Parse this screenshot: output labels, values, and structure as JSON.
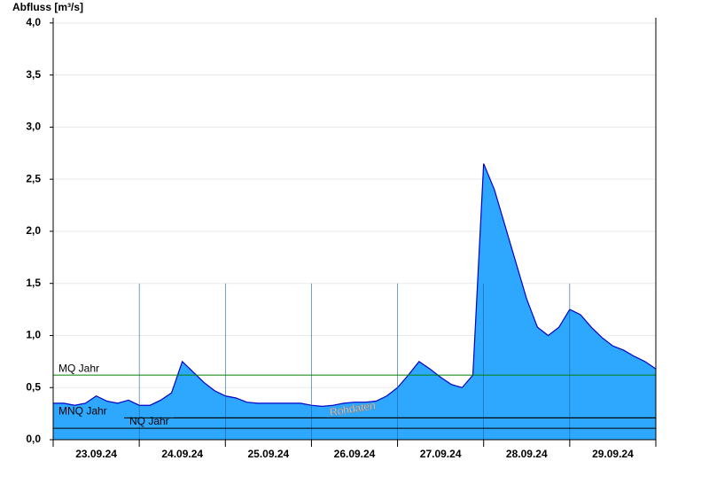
{
  "chart_data": {
    "type": "area",
    "y_label": "Abfluss [m³/s]",
    "watermark": "Rohdaten",
    "x": [
      0,
      0.125,
      0.25,
      0.375,
      0.5,
      0.625,
      0.75,
      0.875,
      1,
      1.125,
      1.25,
      1.375,
      1.5,
      1.625,
      1.75,
      1.875,
      2,
      2.125,
      2.25,
      2.375,
      2.5,
      2.625,
      2.75,
      2.875,
      3,
      3.125,
      3.25,
      3.375,
      3.5,
      3.625,
      3.75,
      3.875,
      4,
      4.125,
      4.25,
      4.375,
      4.5,
      4.625,
      4.75,
      4.875,
      5,
      5.125,
      5.25,
      5.375,
      5.5,
      5.625,
      5.75,
      5.875,
      6,
      6.125,
      6.25,
      6.375,
      6.5,
      6.625,
      6.75,
      6.875,
      7
    ],
    "series": [
      {
        "name": "Abfluss",
        "color": "#2ea8ff",
        "line_color": "#0000c8",
        "values": [
          0.35,
          0.35,
          0.33,
          0.35,
          0.42,
          0.37,
          0.35,
          0.38,
          0.33,
          0.33,
          0.38,
          0.45,
          0.75,
          0.65,
          0.55,
          0.47,
          0.42,
          0.4,
          0.36,
          0.35,
          0.35,
          0.35,
          0.35,
          0.35,
          0.33,
          0.32,
          0.33,
          0.35,
          0.36,
          0.36,
          0.37,
          0.42,
          0.5,
          0.62,
          0.75,
          0.68,
          0.6,
          0.53,
          0.5,
          0.62,
          2.65,
          2.4,
          2.05,
          1.7,
          1.35,
          1.08,
          1.0,
          1.08,
          1.25,
          1.2,
          1.08,
          0.98,
          0.9,
          0.86,
          0.8,
          0.75,
          0.68
        ]
      }
    ],
    "reference_lines": [
      {
        "name": "MQ Jahr",
        "value": 0.62,
        "color": "#008000"
      },
      {
        "name": "MNQ Jahr",
        "value": 0.21,
        "color": "#000000"
      },
      {
        "name": "NQ Jahr",
        "value": 0.11,
        "color": "#000000"
      }
    ],
    "xlim": [
      0,
      7
    ],
    "xticks": [
      {
        "value": 0.5,
        "label": "23.09.24"
      },
      {
        "value": 1.5,
        "label": "24.09.24"
      },
      {
        "value": 2.5,
        "label": "25.09.24"
      },
      {
        "value": 3.5,
        "label": "26.09.24"
      },
      {
        "value": 4.5,
        "label": "27.09.24"
      },
      {
        "value": 5.5,
        "label": "28.09.24"
      },
      {
        "value": 6.5,
        "label": "29.09.24"
      }
    ],
    "ylim": [
      0,
      4.05
    ],
    "yticks": [
      {
        "value": 0,
        "label": "0,0"
      },
      {
        "value": 0.5,
        "label": "0,5"
      },
      {
        "value": 1,
        "label": "1,0"
      },
      {
        "value": 1.5,
        "label": "1,5"
      },
      {
        "value": 2,
        "label": "2,0"
      },
      {
        "value": 2.5,
        "label": "2,5"
      },
      {
        "value": 3,
        "label": "3,0"
      },
      {
        "value": 3.5,
        "label": "3,5"
      },
      {
        "value": 4,
        "label": "4,0"
      }
    ],
    "grid": true
  }
}
